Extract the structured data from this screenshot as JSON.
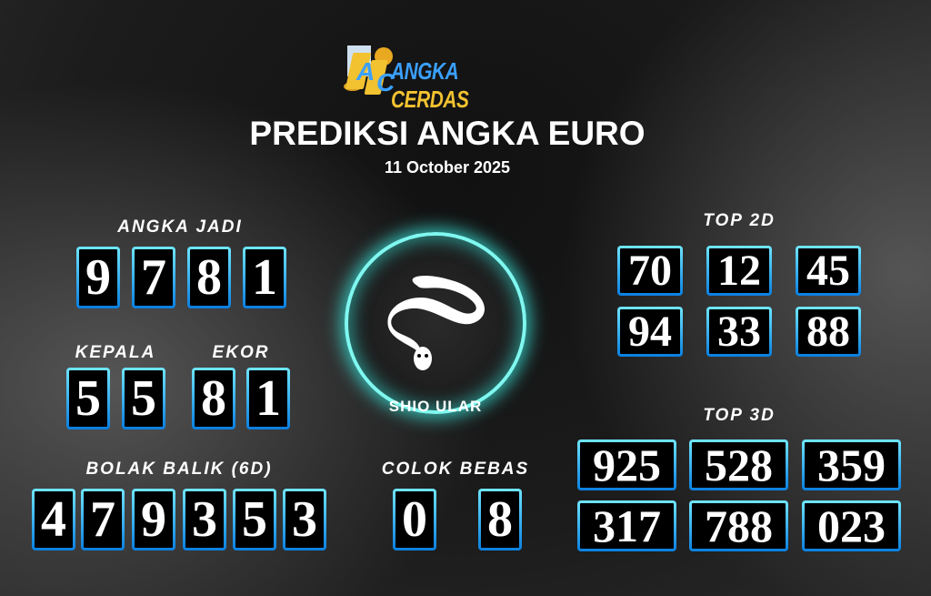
{
  "logo": {
    "text_a": "ANGKA",
    "text_b": "CERDAS",
    "accent": "#3aa0ff",
    "gold": "#f2c230"
  },
  "title": "PREDIKSI ANGKA EURO",
  "date": "11 October 2025",
  "angka_jadi": {
    "label": "ANGKA JADI",
    "digits": [
      "9",
      "7",
      "8",
      "1"
    ]
  },
  "kepala": {
    "label": "KEPALA",
    "digits": [
      "5",
      "5"
    ]
  },
  "ekor": {
    "label": "EKOR",
    "digits": [
      "8",
      "1"
    ]
  },
  "bolak_balik": {
    "label": "BOLAK BALIK (6D)",
    "digits": [
      "4",
      "7",
      "9",
      "3",
      "5",
      "3"
    ]
  },
  "colok_bebas": {
    "label": "COLOK BEBAS",
    "digits": [
      "0",
      "8"
    ]
  },
  "shio": {
    "label": "SHIO ULAR",
    "icon": "snake-icon"
  },
  "top2d": {
    "label": "TOP 2D",
    "values": [
      "70",
      "12",
      "45",
      "94",
      "33",
      "88"
    ]
  },
  "top3d": {
    "label": "TOP 3D",
    "values": [
      "925",
      "528",
      "359",
      "317",
      "788",
      "023"
    ]
  }
}
